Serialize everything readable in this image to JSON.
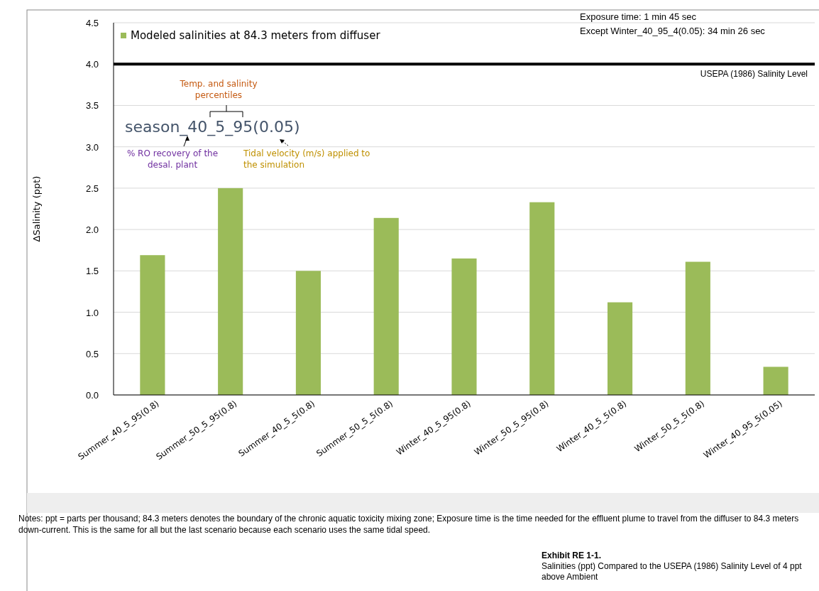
{
  "chart_data": {
    "type": "bar",
    "ylabel": "ΔSalinity (ppt)",
    "categories": [
      "Summer_40_5_95(0.8)",
      "Summer_50_5_95(0.8)",
      "Summer_40_5_5(0.8)",
      "Summer_50_5_5(0.8)",
      "Winter_40_5_95(0.8)",
      "Winter_50_5_95(0.8)",
      "Winter_40_5_5(0.8)",
      "Winter_50_5_5(0.8)",
      "Winter_40_95_5(0.05)"
    ],
    "series": [
      {
        "name": "Modeled salinities at 84.3 meters from diffuser",
        "color": "#9bbb59",
        "values": [
          1.69,
          2.5,
          1.5,
          2.14,
          1.65,
          2.33,
          1.12,
          1.61,
          0.34
        ]
      }
    ],
    "ylim": [
      0,
      4.5
    ],
    "yticks": [
      {
        "value": 0,
        "label": "0.0"
      },
      {
        "value": 0.5,
        "label": "0.5"
      },
      {
        "value": 1,
        "label": "1.0"
      },
      {
        "value": 1.5,
        "label": "1.5"
      },
      {
        "value": 2,
        "label": "2.0"
      },
      {
        "value": 2.5,
        "label": "2.5"
      },
      {
        "value": 3,
        "label": "3.0"
      },
      {
        "value": 3.5,
        "label": "3.5"
      },
      {
        "value": 4,
        "label": "4.0"
      },
      {
        "value": 4.5,
        "label": "4.5"
      }
    ],
    "grid": "y",
    "legend": "top left",
    "ref_lines": [
      {
        "axis": "y",
        "value": 4,
        "label": "USEPA (1986) Salinity Level",
        "color": "#000000"
      }
    ],
    "annotations": [
      "Exposure time: 1 min 45 sec",
      "Except Winter_40_95_4(0.05): 34 min 26 sec",
      "season_40_5_95(0.05)",
      "Temp. and salinity percentiles",
      "% RO recovery of the desal. plant",
      "Tidal velocity (m/s) applied to the simulation",
      "Notes: ppt = parts per thousand; 84.3 meters denotes the boundary of the chronic aquatic toxicity mixing zone; Exposure time is the time needed for the effluent plume to travel from the diffuser to 84.3 meters down-current. This is the same for all but the last scenario because each scenario uses the same tidal speed.",
      "Exhibit RE 1-1.",
      "Salinities (ppt) Compared to the USEPA (1986) Salinity Level of 4 ppt above Ambient"
    ]
  }
}
